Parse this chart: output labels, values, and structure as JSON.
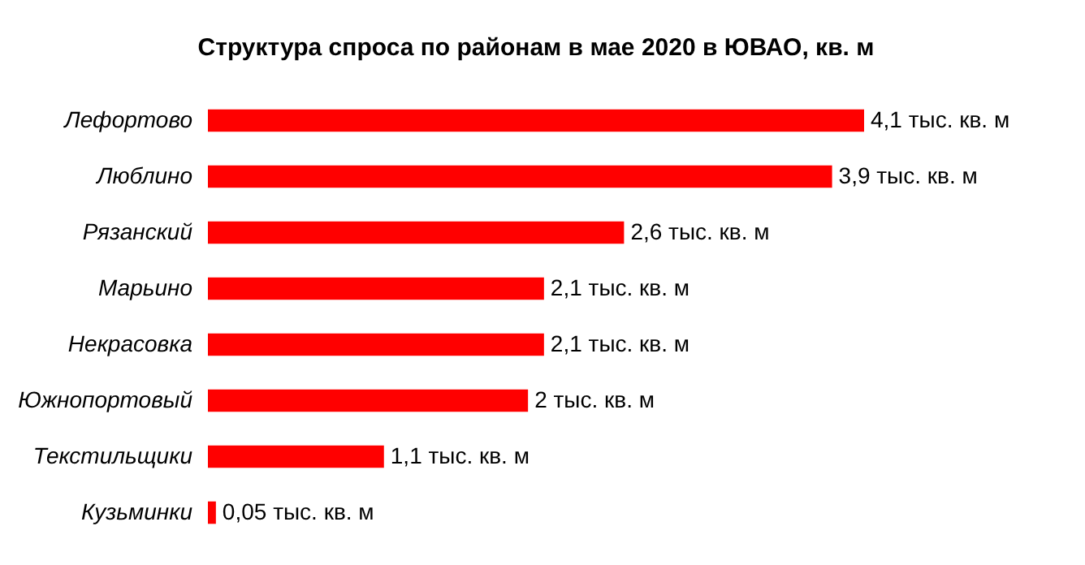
{
  "chart_data": {
    "type": "bar",
    "orientation": "horizontal",
    "title": "Структура  спроса по районам в мае 2020 в ЮВАО, кв. м",
    "categories": [
      "Лефортово",
      "Люблино",
      "Рязанский",
      "Марьино",
      "Некрасовка",
      "Южнопортовый",
      "Текстильщики",
      "Кузьминки"
    ],
    "values": [
      4.1,
      3.9,
      2.6,
      2.1,
      2.1,
      2,
      1.1,
      0.05
    ],
    "value_labels": [
      "4,1 тыс. кв. м",
      "3,9 тыс. кв. м",
      "2,6 тыс. кв. м",
      "2,1 тыс. кв. м",
      "2,1 тыс. кв. м",
      "2 тыс. кв. м",
      "1,1 тыс. кв. м",
      "0,05 тыс. кв. м"
    ],
    "color": "#ff0000"
  }
}
